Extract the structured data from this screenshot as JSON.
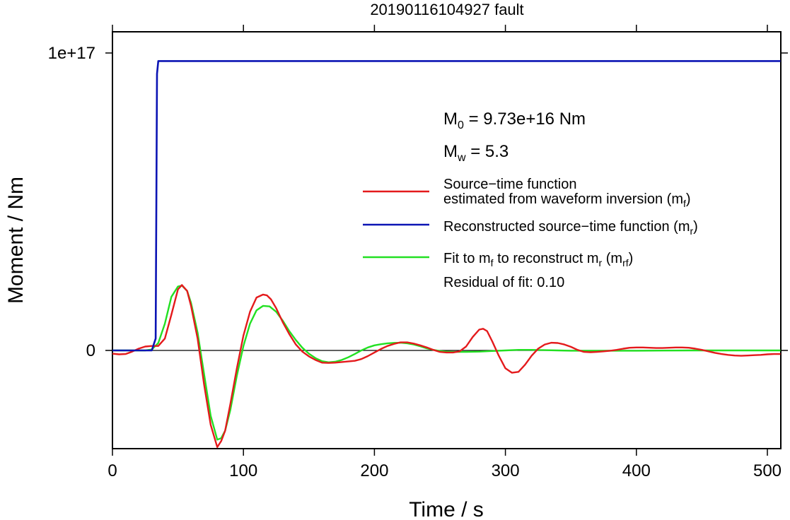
{
  "chart_data": {
    "type": "line",
    "title": "20190116104927 fault",
    "xlabel": "Time / s",
    "ylabel": "Moment / Nm",
    "xlim": [
      0,
      510
    ],
    "ylim": [
      -3.3e+16,
      1e+17
    ],
    "x_ticks": [
      0,
      100,
      200,
      300,
      400,
      500
    ],
    "x_tick_labels": [
      "0",
      "100",
      "200",
      "300",
      "400",
      "500"
    ],
    "y_ticks": [
      0,
      1e+17
    ],
    "y_tick_labels": [
      "0",
      "1e+17"
    ],
    "grid": false,
    "legend_position": "right",
    "annotations": {
      "m0_prefix": "M",
      "m0_sub": "0",
      "m0_value": " = 9.73e+16 Nm",
      "mw_prefix": "M",
      "mw_sub": "w",
      "mw_value": " = 5.3",
      "residual": "Residual of fit: 0.10"
    },
    "legend": [
      {
        "color": "#e41a1c",
        "line1": "Source−time function",
        "line2_main": "estimated from waveform inversion (m",
        "line2_sub": "f",
        "line2_end": ")"
      },
      {
        "color": "#0b14b4",
        "line1_main": "Reconstructed source−time function (m",
        "line1_sub": "r",
        "line1_end": ")"
      },
      {
        "color": "#22e022",
        "parts": [
          "Fit to m",
          "f",
          " to reconstruct m",
          "r",
          " (m",
          "rf",
          ")"
        ]
      }
    ],
    "series": [
      {
        "color": "#e41a1c",
        "x": [
          0,
          5,
          10,
          15,
          20,
          25,
          30,
          35,
          40,
          45,
          50,
          53,
          57,
          60,
          65,
          70,
          75,
          80,
          83,
          86,
          90,
          95,
          100,
          105,
          110,
          115,
          118,
          121,
          125,
          130,
          135,
          140,
          145,
          150,
          155,
          160,
          165,
          170,
          175,
          180,
          185,
          190,
          195,
          200,
          205,
          210,
          215,
          220,
          225,
          230,
          235,
          240,
          245,
          250,
          255,
          260,
          265,
          270,
          275,
          280,
          283,
          286,
          290,
          295,
          300,
          305,
          310,
          315,
          320,
          325,
          330,
          335,
          340,
          345,
          350,
          355,
          360,
          365,
          370,
          375,
          380,
          385,
          390,
          395,
          400,
          405,
          410,
          415,
          420,
          425,
          430,
          435,
          440,
          445,
          450,
          455,
          460,
          465,
          470,
          475,
          480,
          485,
          490,
          495,
          500,
          505,
          510
        ],
        "y": [
          -1100000000000000.0,
          -1300000000000000.0,
          -1200000000000000.0,
          -400000000000000.0,
          600000000000000.0,
          1300000000000000.0,
          1500000000000000.0,
          1500000000000000.0,
          4000000000000000.0,
          1.2e+16,
          2.05e+16,
          2.2e+16,
          2e+16,
          1.5e+16,
          4000000000000000.0,
          -1.15e+16,
          -2.5e+16,
          -3.25e+16,
          -3.05e+16,
          -2.7e+16,
          -1.8e+16,
          -6000000000000000.0,
          5000000000000000.0,
          1.3e+16,
          1.78e+16,
          1.88e+16,
          1.85e+16,
          1.72e+16,
          1.42e+16,
          9500000000000000.0,
          5500000000000000.0,
          2000000000000000.0,
          -400000000000000.0,
          -2000000000000000.0,
          -3200000000000000.0,
          -4100000000000000.0,
          -4200000000000000.0,
          -4100000000000000.0,
          -3900000000000000.0,
          -3700000000000000.0,
          -3500000000000000.0,
          -2900000000000000.0,
          -1900000000000000.0,
          -700000000000000.0,
          500000000000000.0,
          1500000000000000.0,
          2200000000000000.0,
          2700000000000000.0,
          2700000000000000.0,
          2300000000000000.0,
          1700000000000000.0,
          1000000000000000.0,
          200000000000000.0,
          -500000000000000.0,
          -700000000000000.0,
          -700000000000000.0,
          -300000000000000.0,
          1300000000000000.0,
          4500000000000000.0,
          7000000000000000.0,
          7300000000000000.0,
          6500000000000000.0,
          3000000000000000.0,
          -1800000000000000.0,
          -6000000000000000.0,
          -7500000000000000.0,
          -7200000000000000.0,
          -4800000000000000.0,
          -1800000000000000.0,
          600000000000000.0,
          2000000000000000.0,
          2600000000000000.0,
          2500000000000000.0,
          2000000000000000.0,
          1200000000000000.0,
          200000000000000.0,
          -500000000000000.0,
          -600000000000000.0,
          -500000000000000.0,
          -300000000000000.0,
          -100000000000000.0,
          200000000000000.0,
          600000000000000.0,
          900000000000000.0,
          1000000000000000.0,
          1000000000000000.0,
          900000000000000.0,
          800000000000000.0,
          800000000000000.0,
          900000000000000.0,
          1000000000000000.0,
          1000000000000000.0,
          900000000000000.0,
          600000000000000.0,
          200000000000000.0,
          -300000000000000.0,
          -800000000000000.0,
          -1200000000000000.0,
          -1500000000000000.0,
          -1700000000000000.0,
          -1800000000000000.0,
          -1700000000000000.0,
          -1600000000000000.0,
          -1500000000000000.0,
          -1300000000000000.0,
          -1200000000000000.0,
          -1200000000000000.0
        ]
      },
      {
        "color": "#0b14b4",
        "x": [
          0,
          10,
          20,
          30,
          33,
          34,
          35,
          40,
          50,
          100,
          200,
          300,
          400,
          500,
          510
        ],
        "y": [
          0,
          0,
          0,
          0,
          4000000000000000.0,
          9.3e+16,
          9.73e+16,
          9.73e+16,
          9.73e+16,
          9.73e+16,
          9.73e+16,
          9.73e+16,
          9.73e+16,
          9.73e+16,
          9.73e+16
        ]
      },
      {
        "color": "#22e022",
        "x": [
          0,
          5,
          10,
          15,
          20,
          25,
          30,
          35,
          40,
          45,
          50,
          53,
          57,
          60,
          65,
          70,
          75,
          80,
          83,
          86,
          90,
          95,
          100,
          105,
          110,
          115,
          120,
          125,
          130,
          135,
          140,
          145,
          150,
          155,
          160,
          165,
          170,
          175,
          180,
          185,
          190,
          195,
          200,
          205,
          210,
          215,
          220,
          225,
          230,
          235,
          240,
          245,
          250,
          255,
          260,
          270,
          280,
          290,
          300,
          310,
          320,
          330,
          340,
          350,
          360,
          380,
          400,
          420,
          440,
          460,
          480,
          500,
          510
        ],
        "y": [
          0,
          0,
          0,
          0,
          0,
          0,
          300000000000000.0,
          2500000000000000.0,
          9000000000000000.0,
          1.8e+16,
          2.15e+16,
          2.18e+16,
          2e+16,
          1.6e+16,
          6000000000000000.0,
          -8000000000000000.0,
          -2.2e+16,
          -3e+16,
          -2.95e+16,
          -2.7e+16,
          -2e+16,
          -8500000000000000.0,
          1500000000000000.0,
          9000000000000000.0,
          1.35e+16,
          1.5e+16,
          1.48e+16,
          1.3e+16,
          1e+16,
          6500000000000000.0,
          3500000000000000.0,
          900000000000000.0,
          -1100000000000000.0,
          -2600000000000000.0,
          -3600000000000000.0,
          -4000000000000000.0,
          -3800000000000000.0,
          -3200000000000000.0,
          -2300000000000000.0,
          -1200000000000000.0,
          0,
          1000000000000000.0,
          1700000000000000.0,
          2100000000000000.0,
          2400000000000000.0,
          2550000000000000.0,
          2600000000000000.0,
          2400000000000000.0,
          2000000000000000.0,
          1400000000000000.0,
          700000000000000.0,
          200000000000000.0,
          -200000000000000.0,
          -400000000000000.0,
          -500000000000000.0,
          -500000000000000.0,
          -400000000000000.0,
          -200000000000000.0,
          0,
          200000000000000.0,
          200000000000000.0,
          100000000000000.0,
          0,
          -100000000000000.0,
          -100000000000000.0,
          -100000000000000.0,
          -100000000000000.0,
          -50000000000000.0,
          0,
          0,
          0,
          0,
          0
        ]
      }
    ]
  }
}
